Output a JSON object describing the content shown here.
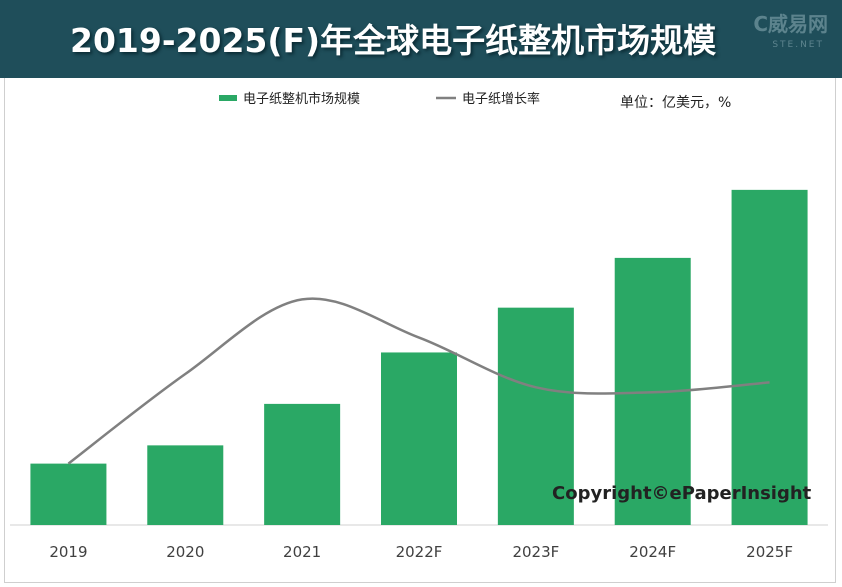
{
  "title": "2019-2025(F)年全球电子纸整机市场规模",
  "watermark": "C威易网",
  "watermark_sub": "STE.NET",
  "unit": "单位：亿美元，%",
  "copyright": "Copyright©ePaperInsight",
  "colors": {
    "bar": "#2aa865",
    "line": "#808080",
    "header": "#1f4e5a"
  },
  "chart_data": {
    "type": "bar",
    "title": "2019-2025(F)年全球电子纸整机市场规模",
    "categories": [
      "2019",
      "2020",
      "2021",
      "2022F",
      "2023F",
      "2024F",
      "2025F"
    ],
    "series": [
      {
        "name": "电子纸整机市场规模",
        "type": "bar",
        "values": [
          18.5,
          24,
          36.5,
          52,
          65.5,
          80.5,
          101
        ]
      },
      {
        "name": "电子纸增长率",
        "type": "line",
        "values": [
          18.5,
          45.5,
          68,
          56.5,
          41.5,
          40,
          43
        ]
      }
    ],
    "ylim": [
      0,
      110
    ],
    "legend": "top-center",
    "grid": false
  }
}
